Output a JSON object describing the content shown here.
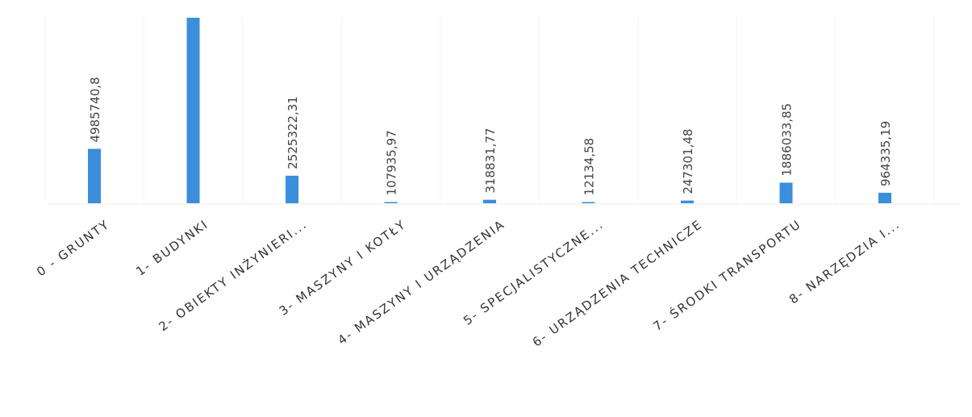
{
  "chart_data": {
    "type": "bar",
    "title": "",
    "xlabel": "",
    "ylabel": "",
    "categories": [
      "0 - GRUNTY",
      "1- BUDYNKI",
      "2- OBIEKTY INŻYNIERI...",
      "3- MASZYNY I KOTŁY",
      "4- MASZYNY I URZĄDZENIA",
      "5- SPECJALISTYCZNE...",
      "6- URZĄDZENIA TECHNICZE",
      "7- ŚRODKI TRANSPORTU",
      "8- NARZĘDZIA I..."
    ],
    "series": [
      {
        "values": [
          4985740.8,
          17000000,
          2525322.31,
          107935.97,
          318831.77,
          12134.58,
          247301.48,
          1886033.85,
          964335.19
        ],
        "labels": [
          "4985740,8",
          "",
          "2525322,31",
          "107935,97",
          "318831,77",
          "12134,58",
          "247301,48",
          "1886033,85",
          "964335,19"
        ]
      }
    ],
    "grid": true,
    "legend": "none",
    "colors": {
      "bar": "#3b8edb",
      "text": "#444444"
    }
  }
}
